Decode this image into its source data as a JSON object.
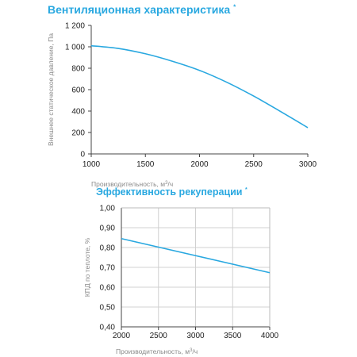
{
  "chart_data": [
    {
      "type": "line",
      "title": "Вентиляционная характеристика",
      "title_marker": "*",
      "xlabel": "Производительность, м",
      "xlabel_sup": "3",
      "xlabel_tail": "/ч",
      "ylabel": "Внешнее статическое давление, Па",
      "xlim": [
        1000,
        3000
      ],
      "ylim": [
        0,
        1200
      ],
      "x_ticks": [
        1000,
        1500,
        2000,
        2500,
        3000
      ],
      "x_tick_labels": [
        "1000",
        "1500",
        "2000",
        "2500",
        "3000"
      ],
      "y_ticks": [
        0,
        200,
        400,
        600,
        800,
        1000,
        1200
      ],
      "y_tick_labels": [
        "0",
        "200",
        "400",
        "600",
        "800",
        "1 000",
        "1 200"
      ],
      "grid": false,
      "color": "#29a8e0",
      "series": [
        {
          "x": [
            1000,
            1250,
            1500,
            1750,
            2000,
            2250,
            2500,
            2750,
            3000
          ],
          "y": [
            1010,
            985,
            935,
            865,
            780,
            670,
            540,
            395,
            245
          ]
        }
      ]
    },
    {
      "type": "line",
      "title": "Эффективность рекуперации",
      "title_marker": "*",
      "xlabel": "Производительность, м",
      "xlabel_sup": "3",
      "xlabel_tail": "/ч",
      "ylabel": "КПД по теплоте, %",
      "xlim": [
        2000,
        4000
      ],
      "ylim": [
        0.4,
        1.0
      ],
      "x_ticks": [
        2000,
        2500,
        3000,
        3500,
        4000
      ],
      "x_tick_labels": [
        "2000",
        "2500",
        "3000",
        "3500",
        "4000"
      ],
      "y_ticks": [
        0.4,
        0.5,
        0.6,
        0.7,
        0.8,
        0.9,
        1.0
      ],
      "y_tick_labels": [
        "0,40",
        "0,50",
        "0,60",
        "0,70",
        "0,80",
        "0,90",
        "1,00"
      ],
      "grid": true,
      "color": "#29a8e0",
      "series": [
        {
          "x": [
            2000,
            4000
          ],
          "y": [
            0.845,
            0.673
          ]
        }
      ]
    }
  ]
}
